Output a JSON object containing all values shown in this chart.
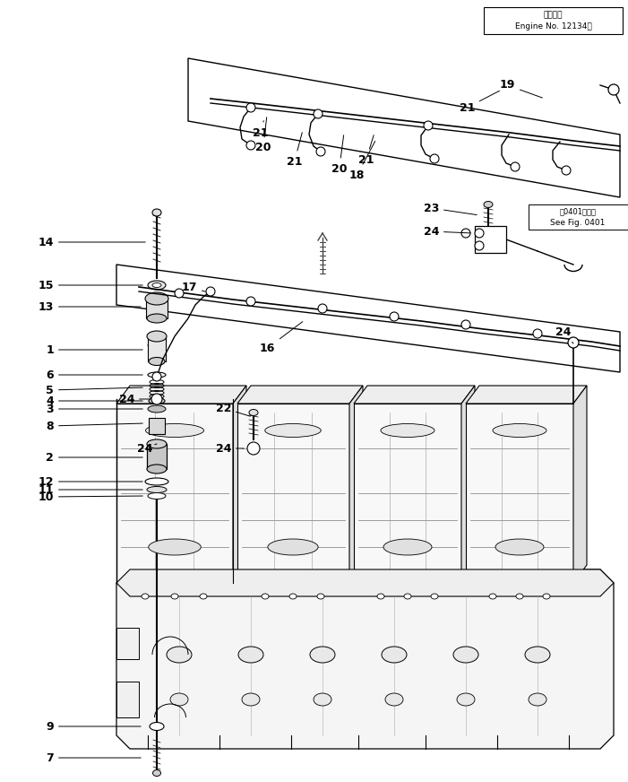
{
  "background_color": "#ffffff",
  "line_color": "#000000",
  "fig_width": 7.01,
  "fig_height": 8.72,
  "dpi": 100,
  "top_right_text1": "適用号機",
  "top_right_text2": "Engine No. 12134～",
  "see_fig_text1": "根0401图参照",
  "see_fig_text2": "See Fig. 0401"
}
